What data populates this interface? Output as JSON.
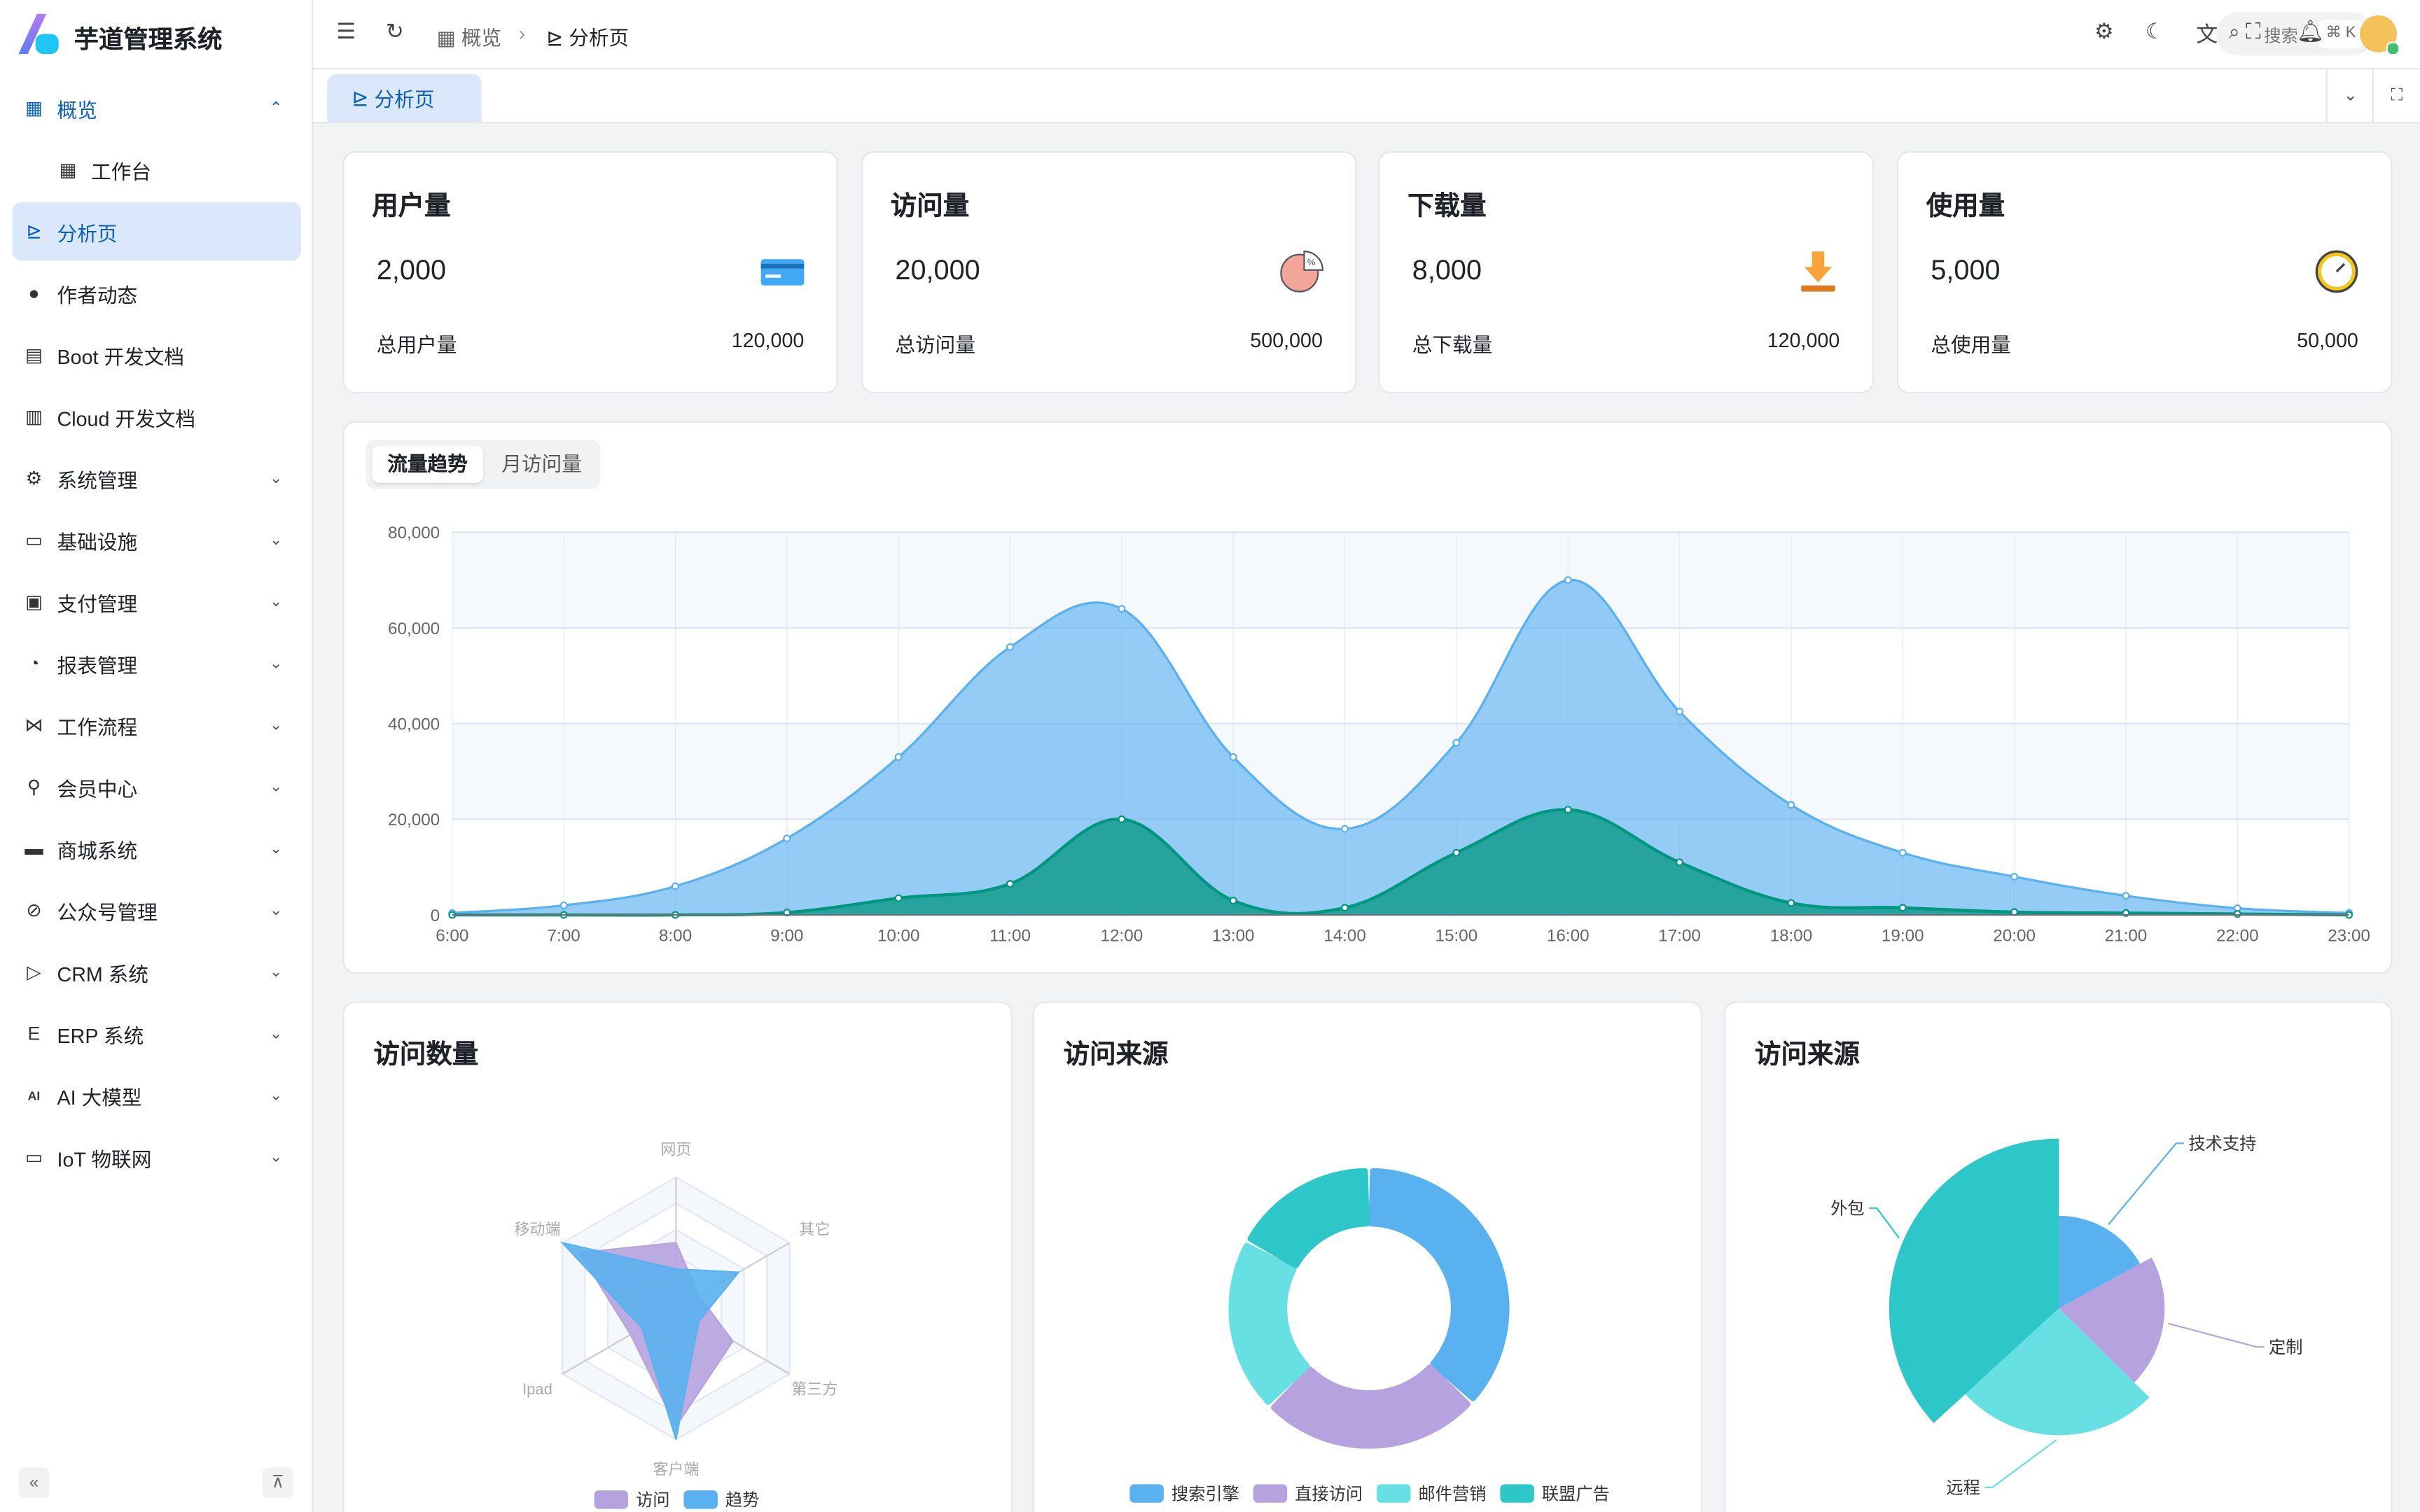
{
  "app": {
    "title": "芋道管理系统"
  },
  "sidebar": {
    "items": [
      {
        "label": "概览",
        "icon": "dashboard-icon",
        "state": "open"
      },
      {
        "label": "工作台",
        "icon": "workspace-icon",
        "state": "sub"
      },
      {
        "label": "分析页",
        "icon": "analysis-icon",
        "state": "active"
      },
      {
        "label": "作者动态",
        "icon": "user-icon"
      },
      {
        "label": "Boot 开发文档",
        "icon": "document-icon"
      },
      {
        "label": "Cloud 开发文档",
        "icon": "documents-icon"
      },
      {
        "label": "系统管理",
        "icon": "gear-icon",
        "chevron": true
      },
      {
        "label": "基础设施",
        "icon": "monitor-icon",
        "chevron": true
      },
      {
        "label": "支付管理",
        "icon": "payment-icon",
        "chevron": true
      },
      {
        "label": "报表管理",
        "icon": "pie-icon",
        "chevron": true
      },
      {
        "label": "工作流程",
        "icon": "workflow-icon",
        "chevron": true
      },
      {
        "label": "会员中心",
        "icon": "bike-icon",
        "chevron": true
      },
      {
        "label": "商城系统",
        "icon": "shop-icon",
        "chevron": true
      },
      {
        "label": "公众号管理",
        "icon": "compass-icon",
        "chevron": true
      },
      {
        "label": "CRM 系统",
        "icon": "crm-icon",
        "chevron": true
      },
      {
        "label": "ERP 系统",
        "icon": "erp-icon",
        "chevron": true
      },
      {
        "label": "AI 大模型",
        "icon": "ai-icon",
        "chevron": true
      },
      {
        "label": "IoT 物联网",
        "icon": "iot-icon",
        "chevron": true
      }
    ]
  },
  "header": {
    "breadcrumb": [
      "概览",
      "分析页"
    ],
    "search_placeholder": "搜索",
    "search_shortcut": "⌘ K"
  },
  "tabs": [
    {
      "label": "分析页"
    }
  ],
  "stats": [
    {
      "title": "用户量",
      "value": "2,000",
      "foot": "总用户量",
      "total": "120,000",
      "icon": "card-icon"
    },
    {
      "title": "访问量",
      "value": "20,000",
      "foot": "总访问量",
      "total": "500,000",
      "icon": "pie-chart-icon"
    },
    {
      "title": "下载量",
      "value": "8,000",
      "foot": "总下载量",
      "total": "120,000",
      "icon": "download-icon"
    },
    {
      "title": "使用量",
      "value": "5,000",
      "foot": "总使用量",
      "total": "50,000",
      "icon": "clock-icon"
    }
  ],
  "trend": {
    "segments": [
      "流量趋势",
      "月访问量"
    ]
  },
  "colors": {
    "primary": "#0960bd",
    "blue": "#5ab1ef",
    "green": "#019680",
    "purple": "#b6a2de",
    "cyan": "#67e0e3",
    "teal": "#2ec7c9"
  },
  "chart_data": [
    {
      "type": "area",
      "x": [
        "6:00",
        "7:00",
        "8:00",
        "9:00",
        "10:00",
        "11:00",
        "12:00",
        "13:00",
        "14:00",
        "15:00",
        "16:00",
        "17:00",
        "18:00",
        "19:00",
        "20:00",
        "21:00",
        "22:00",
        "23:00"
      ],
      "yticks": [
        "0",
        "20,000",
        "40,000",
        "60,000",
        "80,000"
      ],
      "ylim": [
        0,
        80000
      ],
      "grid": true,
      "series": [
        {
          "values": [
            400,
            2000,
            6000,
            16000,
            33000,
            56000,
            64000,
            33000,
            18000,
            36000,
            70000,
            42500,
            23000,
            13000,
            8000,
            4000,
            1400,
            400
          ],
          "color": "#5ab1ef"
        },
        {
          "values": [
            0,
            0,
            0,
            500,
            3500,
            6500,
            20000,
            3000,
            1500,
            13000,
            22000,
            11000,
            2500,
            1500,
            600,
            400,
            200,
            0
          ],
          "color": "#019680"
        }
      ]
    },
    {
      "type": "radar",
      "title": "访问数量",
      "indicators": [
        "网页",
        "移动端",
        "Ipad",
        "客户端",
        "第三方",
        "其它"
      ],
      "max": 100,
      "series": [
        {
          "name": "访问",
          "values": [
            50,
            85,
            40,
            90,
            50,
            20
          ],
          "color": "#b6a2de"
        },
        {
          "name": "趋势",
          "values": [
            30,
            100,
            30,
            100,
            20,
            55
          ],
          "color": "#5ab1ef"
        }
      ],
      "legend": "bottom"
    },
    {
      "type": "pie",
      "title": "访问来源",
      "categories": [
        "搜索引擎",
        "直接访问",
        "邮件营销",
        "联盟广告"
      ],
      "values": [
        1048,
        735,
        580,
        484
      ],
      "colors": [
        "#5ab1ef",
        "#b6a2de",
        "#67e0e3",
        "#2ec7c9"
      ],
      "legend": "bottom"
    },
    {
      "type": "pie",
      "title": "访问来源",
      "rose": true,
      "categories": [
        "技术支持",
        "定制",
        "远程",
        "外包"
      ],
      "values": [
        484,
        580,
        735,
        1048
      ],
      "colors": [
        "#5ab1ef",
        "#b6a2de",
        "#67e0e3",
        "#2ec7c9"
      ]
    }
  ]
}
